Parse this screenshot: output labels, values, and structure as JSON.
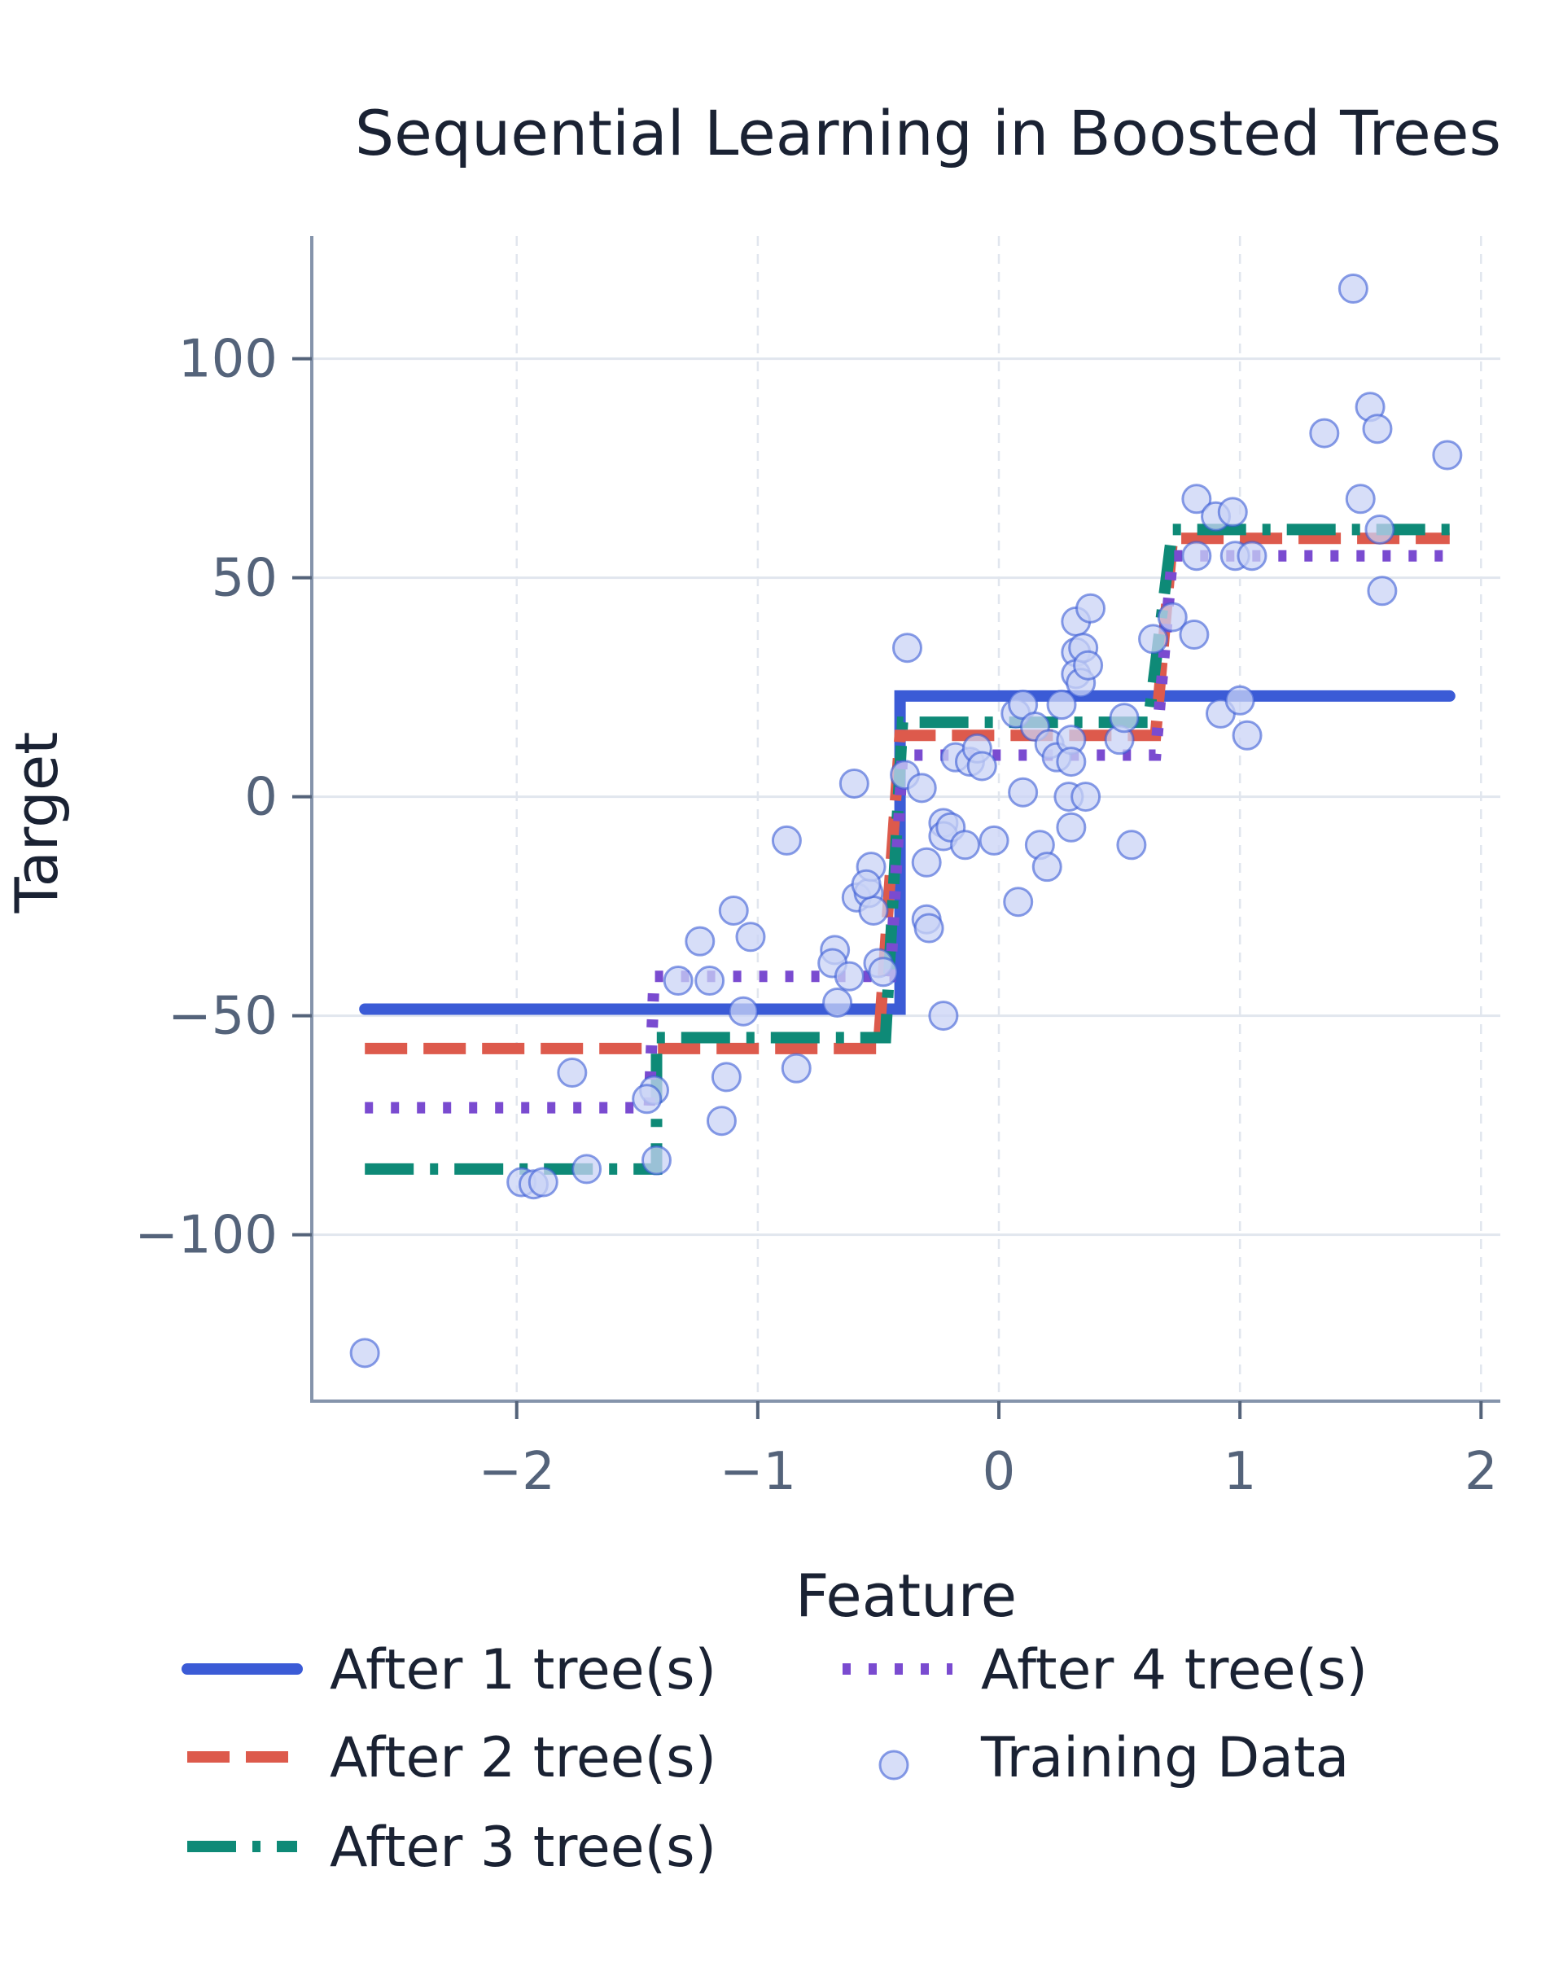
{
  "chart_data": {
    "type": "line",
    "title": "Sequential Learning in Boosted Trees",
    "xlabel": "Feature",
    "ylabel": "Target",
    "xlim": [
      -2.85,
      2.08
    ],
    "ylim": [
      -138,
      128
    ],
    "x_ticks": [
      -2,
      -1,
      0,
      1,
      2
    ],
    "x_tick_labels": [
      "−2",
      "−1",
      "0",
      "1",
      "2"
    ],
    "y_ticks": [
      -100,
      -50,
      0,
      50,
      100
    ],
    "y_tick_labels": [
      "−100",
      "−50",
      "0",
      "50",
      "100"
    ],
    "grid": true,
    "legend_position": "bottom",
    "series": [
      {
        "name": "After 1 tree(s)",
        "color": "#3b5bd6",
        "dash": "solid",
        "x": [
          -2.63,
          -0.41,
          -0.41,
          1.87
        ],
        "y": [
          -48.5,
          -48.5,
          23,
          23
        ]
      },
      {
        "name": "After 2 tree(s)",
        "color": "#dd5a4c",
        "dash": "dashed",
        "x": [
          -2.63,
          -0.5,
          -0.41,
          0.65,
          0.72,
          1.87
        ],
        "y": [
          -57.5,
          -57.5,
          14,
          14,
          59,
          59
        ]
      },
      {
        "name": "After 3 tree(s)",
        "color": "#0e8a77",
        "dash": "dashdot",
        "x": [
          -2.63,
          -1.42,
          -1.42,
          -0.47,
          -0.4,
          0.62,
          0.72,
          1.87
        ],
        "y": [
          -85,
          -85,
          -55,
          -55,
          17,
          17,
          61,
          61
        ]
      },
      {
        "name": "After 4 tree(s)",
        "color": "#7a4bd0",
        "dash": "dotted",
        "x": [
          -2.63,
          -1.45,
          -1.43,
          -0.45,
          -0.4,
          0.65,
          0.72,
          1.87
        ],
        "y": [
          -71,
          -71,
          -41,
          -41,
          9.5,
          9.5,
          55,
          55
        ]
      }
    ],
    "scatter": {
      "name": "Training Data",
      "color": "#3b5bd6",
      "fill": "#c9d3f5",
      "points": [
        [
          -2.63,
          -127
        ],
        [
          -1.98,
          -88
        ],
        [
          -1.93,
          -88.5
        ],
        [
          -1.89,
          -88
        ],
        [
          -1.71,
          -85
        ],
        [
          -1.77,
          -63
        ],
        [
          -1.43,
          -67
        ],
        [
          -1.46,
          -69
        ],
        [
          -1.42,
          -83
        ],
        [
          -1.33,
          -42
        ],
        [
          -1.2,
          -42
        ],
        [
          -1.13,
          -64
        ],
        [
          -1.15,
          -74
        ],
        [
          -1.24,
          -33
        ],
        [
          -1.06,
          -49
        ],
        [
          -1.1,
          -26
        ],
        [
          -1.03,
          -32
        ],
        [
          -0.84,
          -62
        ],
        [
          -0.88,
          -10
        ],
        [
          -0.6,
          3
        ],
        [
          -0.68,
          -35
        ],
        [
          -0.69,
          -38
        ],
        [
          -0.62,
          -41
        ],
        [
          -0.67,
          -47
        ],
        [
          -0.59,
          -23
        ],
        [
          -0.54,
          -22
        ],
        [
          -0.53,
          -16
        ],
        [
          -0.52,
          -26
        ],
        [
          -0.55,
          -20
        ],
        [
          -0.5,
          -38
        ],
        [
          -0.48,
          -40
        ],
        [
          -0.39,
          5
        ],
        [
          -0.38,
          34
        ],
        [
          -0.32,
          2
        ],
        [
          -0.3,
          -15
        ],
        [
          -0.3,
          -28
        ],
        [
          -0.29,
          -30
        ],
        [
          -0.23,
          -6
        ],
        [
          -0.23,
          -9
        ],
        [
          -0.23,
          -50
        ],
        [
          -0.2,
          -7
        ],
        [
          -0.18,
          9
        ],
        [
          -0.14,
          -11
        ],
        [
          -0.12,
          8
        ],
        [
          -0.09,
          11
        ],
        [
          -0.07,
          7
        ],
        [
          -0.02,
          -10
        ],
        [
          0.07,
          19
        ],
        [
          0.1,
          21
        ],
        [
          0.08,
          -24
        ],
        [
          0.1,
          1
        ],
        [
          0.15,
          16
        ],
        [
          0.17,
          -11
        ],
        [
          0.2,
          -16
        ],
        [
          0.21,
          12
        ],
        [
          0.24,
          9
        ],
        [
          0.26,
          21
        ],
        [
          0.29,
          0
        ],
        [
          0.3,
          13
        ],
        [
          0.3,
          8
        ],
        [
          0.3,
          -7
        ],
        [
          0.32,
          33
        ],
        [
          0.32,
          28
        ],
        [
          0.32,
          40
        ],
        [
          0.34,
          26
        ],
        [
          0.35,
          34
        ],
        [
          0.37,
          30
        ],
        [
          0.36,
          0
        ],
        [
          0.38,
          43
        ],
        [
          0.5,
          13
        ],
        [
          0.52,
          18
        ],
        [
          0.55,
          -11
        ],
        [
          0.64,
          36
        ],
        [
          0.72,
          41
        ],
        [
          0.81,
          37
        ],
        [
          0.82,
          55
        ],
        [
          0.82,
          68
        ],
        [
          0.9,
          64
        ],
        [
          0.92,
          19
        ],
        [
          0.97,
          65
        ],
        [
          0.98,
          55
        ],
        [
          1.0,
          22
        ],
        [
          1.03,
          14
        ],
        [
          1.05,
          55
        ],
        [
          1.35,
          83
        ],
        [
          1.5,
          68
        ],
        [
          1.47,
          116
        ],
        [
          1.54,
          89
        ],
        [
          1.57,
          84
        ],
        [
          1.58,
          61
        ],
        [
          1.59,
          47
        ],
        [
          1.86,
          78
        ]
      ]
    }
  }
}
